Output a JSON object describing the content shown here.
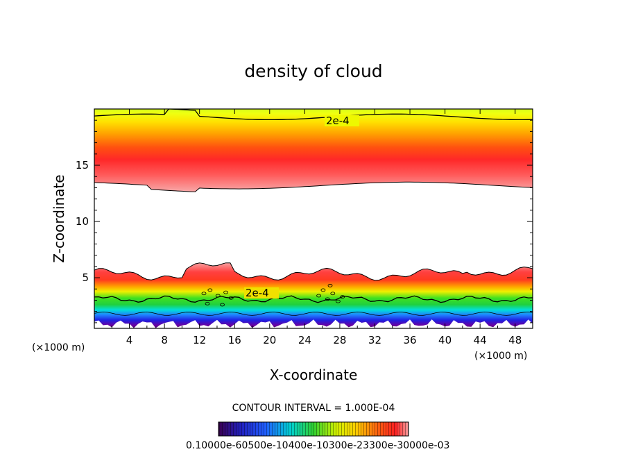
{
  "chart_data": {
    "type": "heatmap",
    "title": "density of cloud",
    "xlabel": "X-coordinate",
    "ylabel": "Z-coordinate",
    "x_unit": "(×1000 m)",
    "xlim": [
      0,
      50
    ],
    "ylim": [
      0.5,
      20
    ],
    "x_ticks": [
      4,
      8,
      12,
      16,
      20,
      24,
      28,
      32,
      36,
      40,
      44,
      48
    ],
    "y_ticks": [
      5,
      10,
      15
    ],
    "contour_interval_text": "CONTOUR INTERVAL = 1.000E-04",
    "contour_labels": [
      {
        "text": "2e-4",
        "x": 27,
        "z": 18.7
      },
      {
        "text": "2e-4",
        "x": 19.5,
        "z": 3.3
      }
    ],
    "colorbar_tick_text": "0.10000e-60500e-10400e-10300e-23300e-30000e-03",
    "value_range": [
      0.0001,
      0.0003
    ],
    "layers": [
      {
        "name": "upper cloud band",
        "z_bottom": 13.2,
        "z_peak": 15.2,
        "z_top": 19.5,
        "peak_density": 0.0003
      },
      {
        "name": "lower cloud band",
        "z_bottom": 0.7,
        "z_peak": 4.2,
        "z_top": 6.0,
        "peak_density": 0.0003
      }
    ],
    "colors": {
      "low": "#4b0066",
      "blue": "#2030ff",
      "cyan": "#00d8e0",
      "green": "#20d020",
      "yellow": "#f0f000",
      "orange": "#ff9900",
      "red": "#ff2020",
      "pink": "#f8a0a0"
    }
  }
}
